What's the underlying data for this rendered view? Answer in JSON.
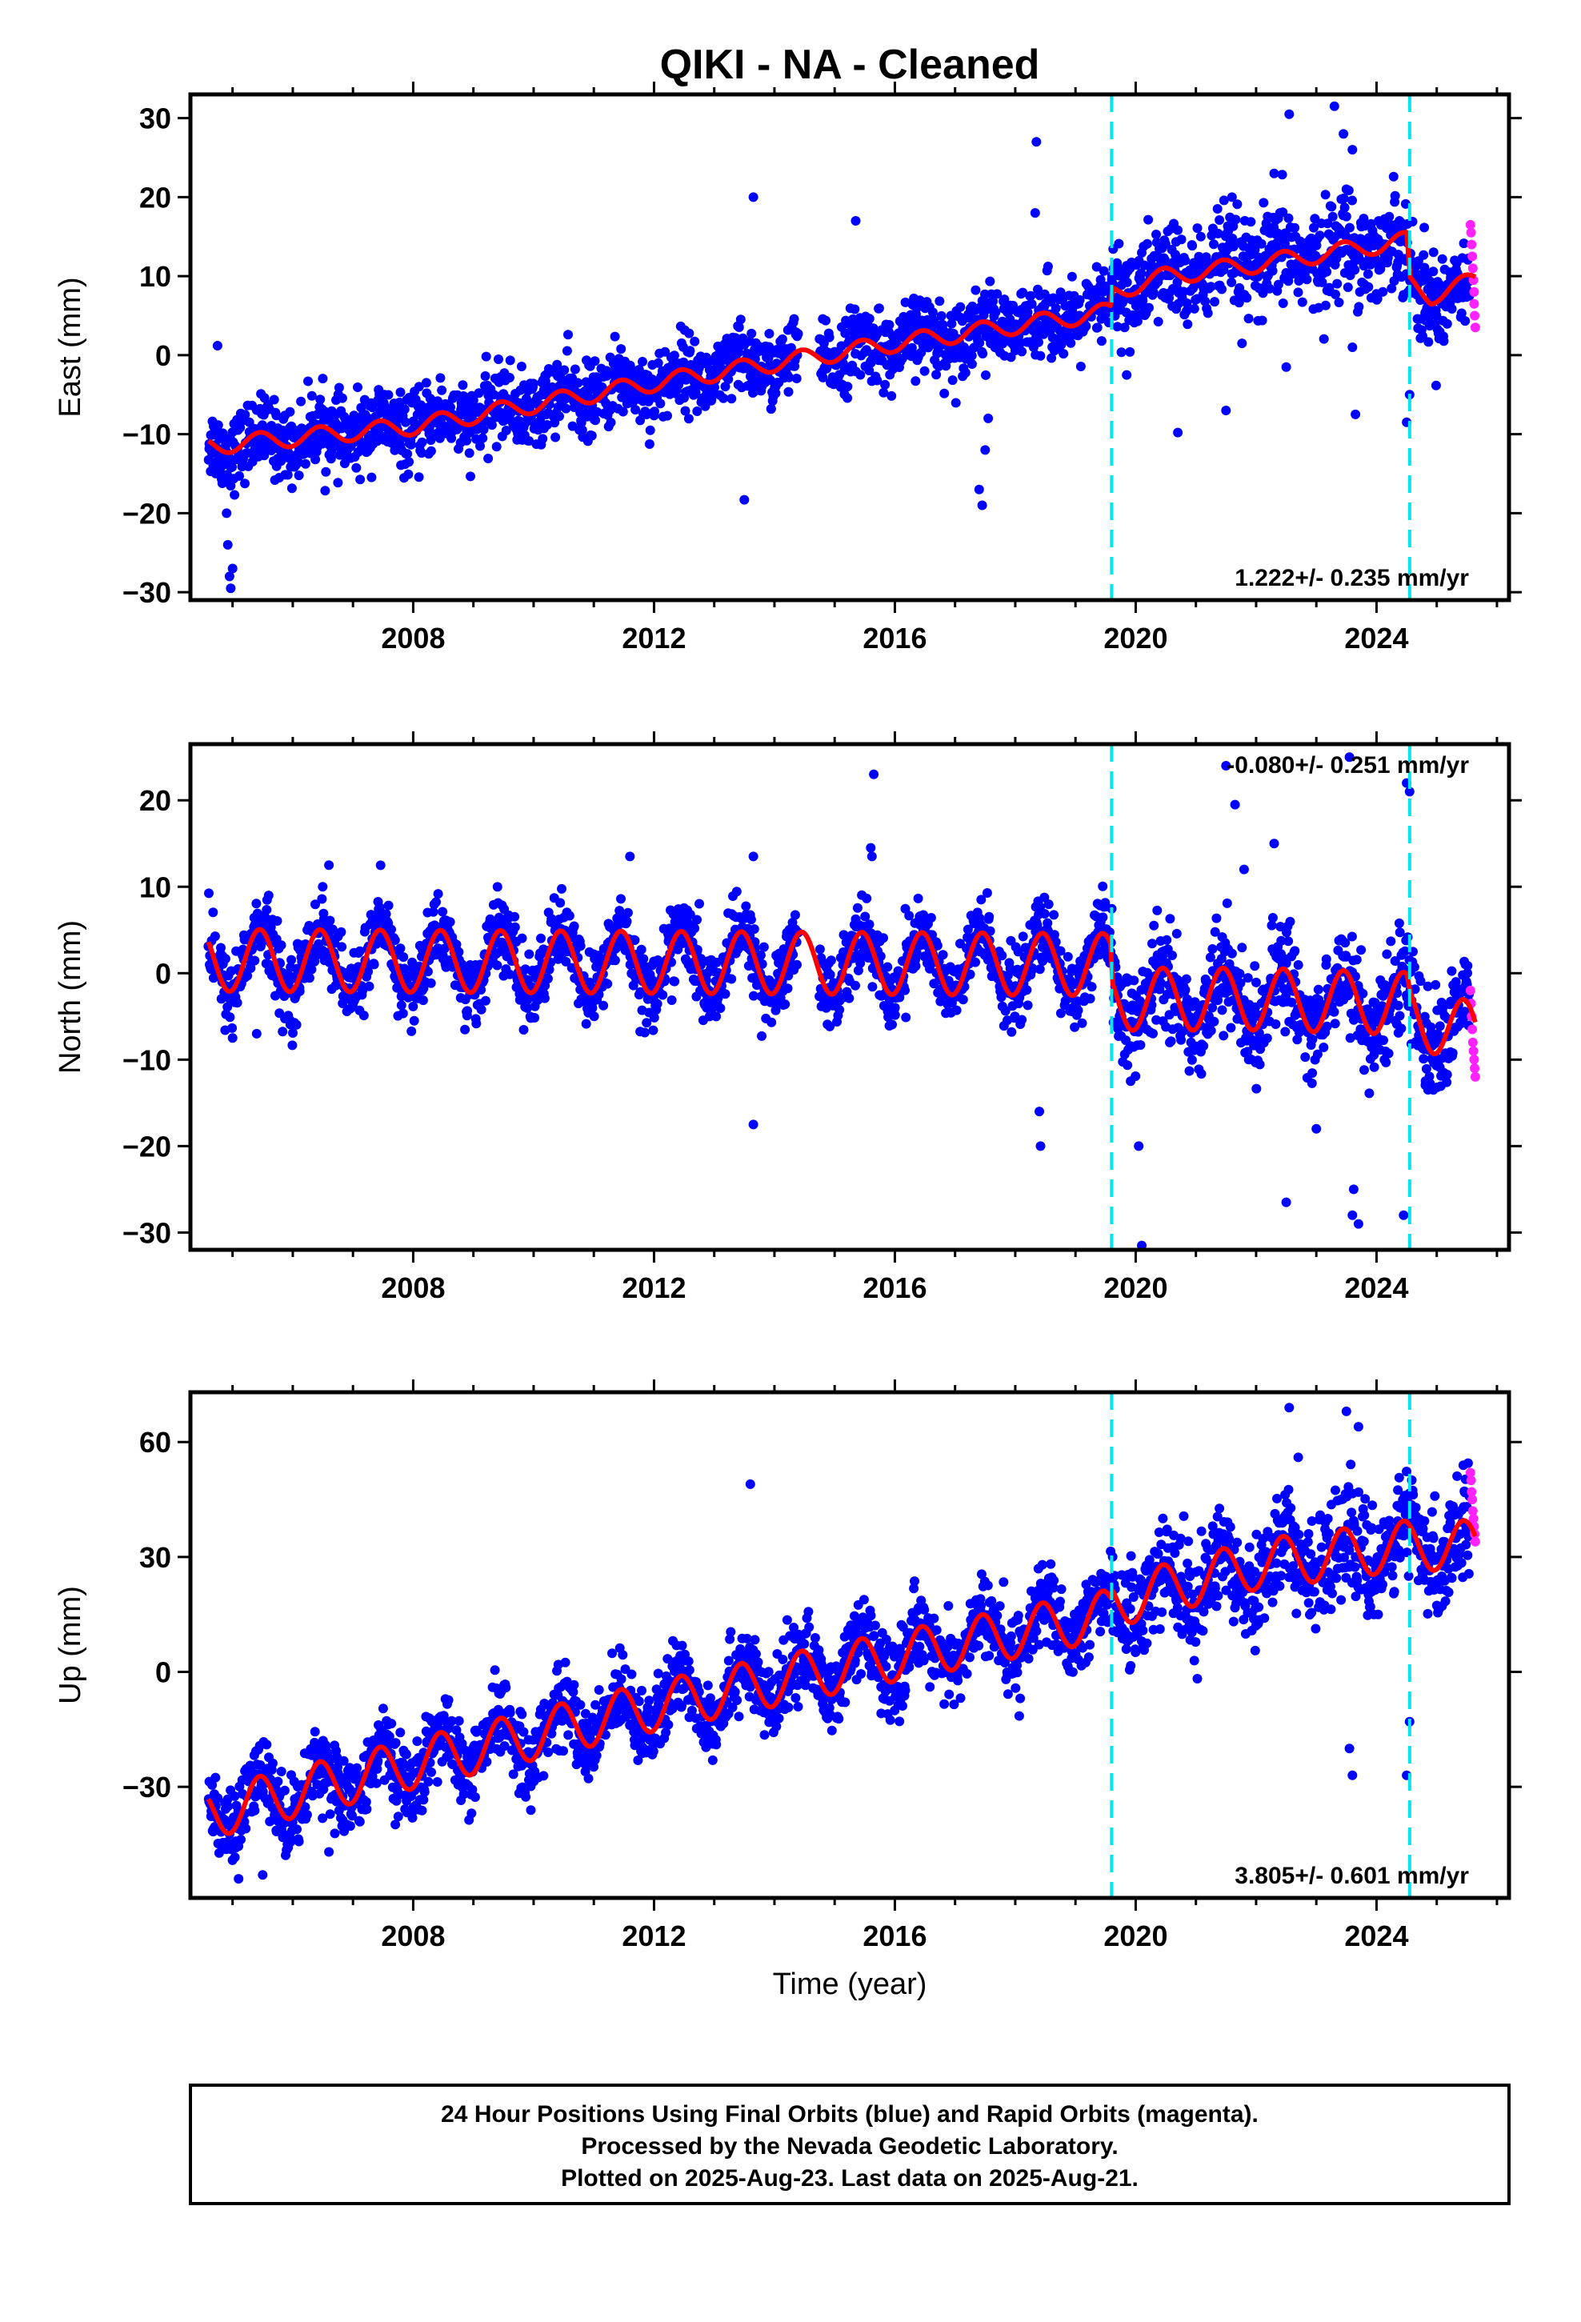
{
  "chart_data": {
    "type": "scatter",
    "title": "QIKI  - NA - Cleaned",
    "xlabel": "Time (year)",
    "xlim": [
      2004.3,
      2026.2
    ],
    "x_ticks": [
      2008,
      2012,
      2016,
      2020,
      2024
    ],
    "x_tick_labels": [
      "2008",
      "2012",
      "2016",
      "2020",
      "2024"
    ],
    "equipment_change_epochs": [
      2019.6,
      2024.55
    ],
    "data_span": [
      2004.6,
      2025.64
    ],
    "rapid_orbit_start": 2025.55,
    "grid": false,
    "series_colors": {
      "final_orbits": "#0000ff",
      "rapid_orbits": "#ff22ff",
      "model_fit": "#ff0000",
      "change_markers": "#00e5ee"
    },
    "panels": [
      {
        "id": "east",
        "ylabel": "East (mm)",
        "ylim": [
          -31,
          33
        ],
        "y_ticks": [
          -30,
          -20,
          -10,
          0,
          10,
          20,
          30
        ],
        "y_tick_labels": [
          "−30",
          "−20",
          "−10",
          "0",
          "10",
          "20",
          "30"
        ],
        "rate_label": "1.222+/- 0.235 mm/yr",
        "rate_position": "bottom-right",
        "model": {
          "fit_knots": [
            [
              2004.6,
              -11.5
            ],
            [
              2008.0,
              -9.0
            ],
            [
              2012.0,
              -3.5
            ],
            [
              2016.0,
              1.5
            ],
            [
              2019.58,
              5.5
            ],
            [
              2019.62,
              8.0
            ],
            [
              2020.5,
              10.0
            ],
            [
              2022.0,
              11.5
            ],
            [
              2024.5,
              14.5
            ],
            [
              2024.56,
              9.0
            ],
            [
              2024.9,
              7.5
            ],
            [
              2025.64,
              9.5
            ]
          ],
          "seasonal_amplitude": 1.1,
          "scatter_sd": 2.3
        },
        "outliers": [
          [
            2004.75,
            1.2
          ],
          [
            2004.9,
            -20
          ],
          [
            2004.92,
            -24
          ],
          [
            2004.95,
            -28
          ],
          [
            2004.97,
            -29.5
          ],
          [
            2005.0,
            -27
          ],
          [
            2013.5,
            -18.3
          ],
          [
            2013.65,
            20
          ],
          [
            2017.4,
            -17
          ],
          [
            2017.45,
            -19
          ],
          [
            2017.5,
            -12
          ],
          [
            2017.55,
            -8
          ],
          [
            2018.35,
            27
          ],
          [
            2018.33,
            18
          ],
          [
            2015.35,
            17
          ],
          [
            2019.85,
            -2.5
          ],
          [
            2020.7,
            -9.8
          ],
          [
            2021.5,
            -7
          ],
          [
            2022.5,
            -1.5
          ],
          [
            2022.55,
            30.5
          ],
          [
            2023.3,
            31.5
          ],
          [
            2023.45,
            28
          ],
          [
            2023.6,
            26
          ],
          [
            2023.6,
            1
          ],
          [
            2023.65,
            -7.5
          ],
          [
            2024.55,
            -5
          ],
          [
            2024.5,
            -8.5
          ],
          [
            2023.5,
            21
          ],
          [
            2021.6,
            20
          ],
          [
            2022.3,
            23
          ]
        ],
        "rapid_points": [
          [
            2025.56,
            16.5
          ],
          [
            2025.57,
            15.5
          ],
          [
            2025.58,
            14
          ],
          [
            2025.59,
            12.5
          ],
          [
            2025.6,
            11
          ],
          [
            2025.61,
            9.5
          ],
          [
            2025.62,
            8
          ],
          [
            2025.62,
            6.5
          ],
          [
            2025.63,
            5
          ],
          [
            2025.64,
            3.5
          ]
        ]
      },
      {
        "id": "north",
        "ylabel": "North (mm)",
        "ylim": [
          -32,
          26.5
        ],
        "y_ticks": [
          -30,
          -20,
          -10,
          0,
          10,
          20
        ],
        "y_tick_labels": [
          "−30",
          "−20",
          "−10",
          "0",
          "10",
          "20"
        ],
        "rate_label": "-0.080+/- 0.251 mm/yr",
        "rate_position": "top-right",
        "model": {
          "fit_knots": [
            [
              2004.6,
              1.5
            ],
            [
              2019.58,
              1.0
            ],
            [
              2019.62,
              -3.0
            ],
            [
              2022.0,
              -3.0
            ],
            [
              2024.5,
              -3.5
            ],
            [
              2024.56,
              -5.0
            ],
            [
              2025.64,
              -7.0
            ]
          ],
          "seasonal_amplitude": 3.6,
          "scatter_sd": 2.1
        },
        "outliers": [
          [
            2005.0,
            -7.5
          ],
          [
            2005.4,
            -7
          ],
          [
            2013.65,
            -17.5
          ],
          [
            2015.65,
            23
          ],
          [
            2015.6,
            14.5
          ],
          [
            2015.62,
            13.5
          ],
          [
            2013.65,
            13.5
          ],
          [
            2018.4,
            -16
          ],
          [
            2018.42,
            -20
          ],
          [
            2020.05,
            -20
          ],
          [
            2020.1,
            -31.5
          ],
          [
            2021.65,
            19.5
          ],
          [
            2021.8,
            12
          ],
          [
            2022.3,
            15
          ],
          [
            2022.5,
            -26.5
          ],
          [
            2023.0,
            -18
          ],
          [
            2023.6,
            -28
          ],
          [
            2023.7,
            -29
          ],
          [
            2023.62,
            -25
          ],
          [
            2024.5,
            22
          ],
          [
            2024.55,
            21
          ],
          [
            2024.45,
            -28
          ],
          [
            2021.5,
            24
          ],
          [
            2023.55,
            25
          ],
          [
            2006.6,
            12.5
          ],
          [
            2005.6,
            9
          ],
          [
            2011.6,
            13.5
          ]
        ],
        "rapid_points": [
          [
            2025.56,
            -2
          ],
          [
            2025.57,
            -3.5
          ],
          [
            2025.58,
            -5
          ],
          [
            2025.59,
            -6.5
          ],
          [
            2025.6,
            -8
          ],
          [
            2025.61,
            -9
          ],
          [
            2025.62,
            -10
          ],
          [
            2025.63,
            -11
          ],
          [
            2025.64,
            -12
          ]
        ]
      },
      {
        "id": "up",
        "ylabel": "Up (mm)",
        "ylim": [
          -59,
          73
        ],
        "y_ticks": [
          -30,
          0,
          30,
          60
        ],
        "y_tick_labels": [
          "−30",
          "0",
          "30",
          "60"
        ],
        "rate_label": "3.805+/- 0.601 mm/yr",
        "rate_position": "bottom-right",
        "model": {
          "fit_knots": [
            [
              2004.6,
              -37
            ],
            [
              2008.0,
              -24
            ],
            [
              2012.0,
              -9
            ],
            [
              2016.0,
              4
            ],
            [
              2019.58,
              15
            ],
            [
              2019.62,
              18
            ],
            [
              2022.0,
              28
            ],
            [
              2024.5,
              33
            ],
            [
              2024.56,
              33
            ],
            [
              2025.64,
              33
            ]
          ],
          "seasonal_amplitude": 6.5,
          "scatter_sd": 5.0
        },
        "outliers": [
          [
            2013.6,
            49
          ],
          [
            2022.55,
            69
          ],
          [
            2022.7,
            56
          ],
          [
            2023.5,
            68
          ],
          [
            2023.7,
            64
          ],
          [
            2023.55,
            -20
          ],
          [
            2023.6,
            -27
          ],
          [
            2024.5,
            -27
          ],
          [
            2024.55,
            -13
          ],
          [
            2005.1,
            -54
          ],
          [
            2005.5,
            -53
          ],
          [
            2006.6,
            -47
          ]
        ],
        "rapid_points": [
          [
            2025.56,
            52
          ],
          [
            2025.57,
            50
          ],
          [
            2025.58,
            47
          ],
          [
            2025.59,
            45
          ],
          [
            2025.6,
            42
          ],
          [
            2025.61,
            40
          ],
          [
            2025.62,
            38
          ],
          [
            2025.63,
            36
          ],
          [
            2025.64,
            34
          ]
        ]
      }
    ]
  },
  "footer": {
    "line1": "24 Hour Positions Using Final Orbits (blue) and Rapid Orbits (magenta).",
    "line2": "Processed by the Nevada Geodetic Laboratory.",
    "line3": "Plotted on 2025-Aug-23. Last data on 2025-Aug-21."
  }
}
